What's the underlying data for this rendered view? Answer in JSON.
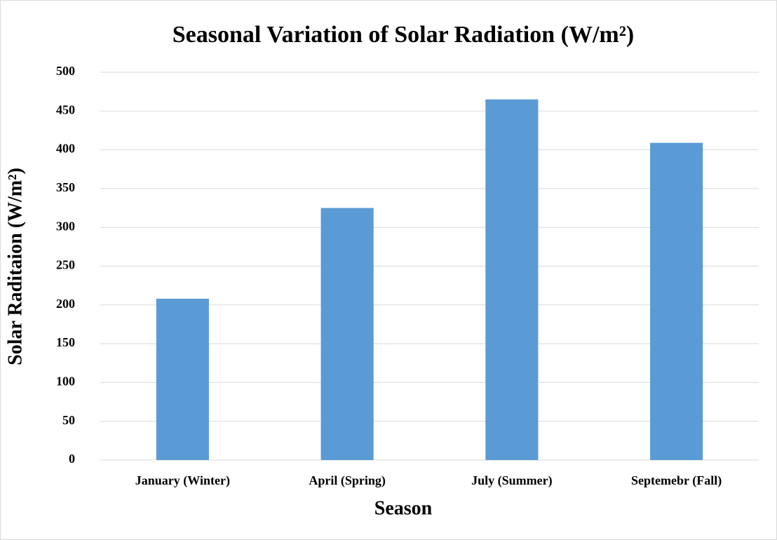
{
  "chart_data": {
    "type": "bar",
    "title": "Seasonal Variation of Solar Radiation (W/m²)",
    "x_label": "Season",
    "y_label": "Solar Raditaion (W/m²)",
    "categories": [
      "January (Winter)",
      "April (Spring)",
      "July (Summer)",
      "Septemebr (Fall)"
    ],
    "values": [
      208,
      325,
      465,
      409
    ],
    "color": "#5b9bd5",
    "ylim": [
      0,
      500
    ],
    "yticks": [
      0,
      50,
      100,
      150,
      200,
      250,
      300,
      350,
      400,
      450,
      500
    ],
    "grid": true
  }
}
